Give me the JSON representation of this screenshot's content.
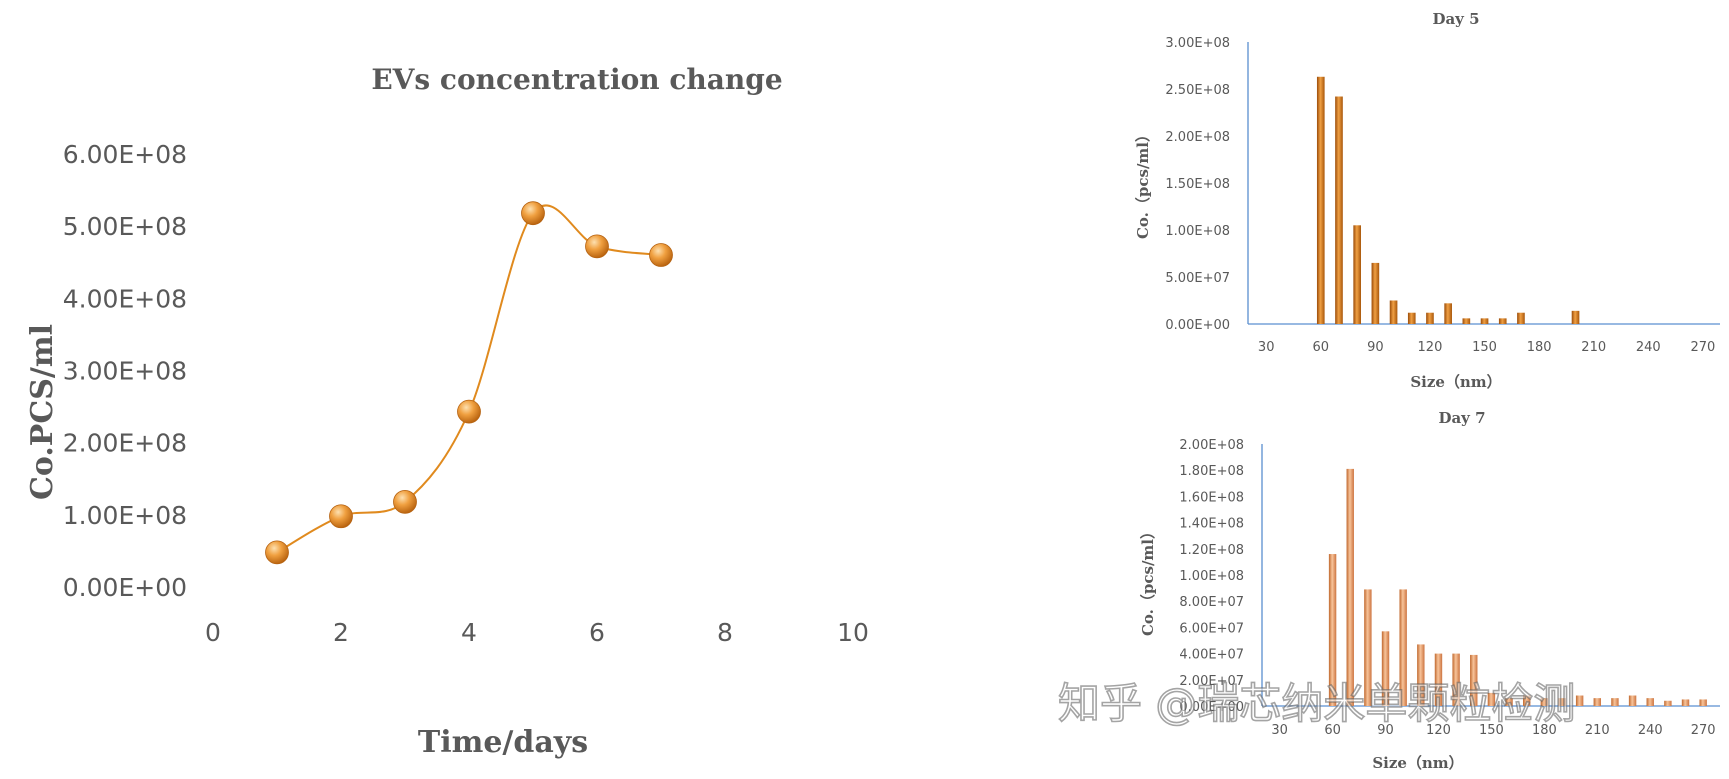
{
  "chart_data": [
    {
      "type": "line",
      "title": "EVs concentration change",
      "xlabel": "Time/days",
      "ylabel": "Co.PCS/ml",
      "xlim": [
        0,
        10
      ],
      "ylim": [
        0,
        600000000
      ],
      "x_ticks": [
        "0",
        "2",
        "4",
        "6",
        "8",
        "10"
      ],
      "y_ticks": [
        "0.00E+00",
        "1.00E+08",
        "2.00E+08",
        "3.00E+08",
        "4.00E+08",
        "5.00E+08",
        "6.00E+08"
      ],
      "smoothed": true,
      "grid": false,
      "series": [
        {
          "x": [
            1,
            2,
            3,
            4,
            5,
            6,
            7
          ],
          "y": [
            48000000,
            98000000,
            118000000,
            243000000,
            518000000,
            472000000,
            460000000
          ],
          "color": "#e08a1e"
        }
      ]
    },
    {
      "type": "bar",
      "title": "Day 5",
      "xlabel": "Size（nm）",
      "ylabel": "Co.（pcs/ml）",
      "xlim": [
        20,
        275
      ],
      "ylim": [
        0,
        300000000
      ],
      "x_ticks": [
        "30",
        "60",
        "90",
        "120",
        "150",
        "180",
        "210",
        "240",
        "270"
      ],
      "y_ticks": [
        "0.00E+00",
        "5.00E+07",
        "1.00E+08",
        "1.50E+08",
        "2.00E+08",
        "2.50E+08",
        "3.00E+08"
      ],
      "grid": false,
      "x": [
        60,
        70,
        80,
        90,
        100,
        110,
        120,
        130,
        140,
        150,
        160,
        170,
        200
      ],
      "values": [
        263000000,
        242000000,
        105000000,
        65000000,
        25000000,
        12000000,
        12000000,
        22000000,
        6000000,
        6000000,
        6000000,
        12000000,
        14000000
      ],
      "color": "#c8660c"
    },
    {
      "type": "bar",
      "title": "Day 7",
      "xlabel": "Size（nm）",
      "ylabel": "Co.（pcs/ml）",
      "xlim": [
        20,
        275
      ],
      "ylim": [
        0,
        200000000
      ],
      "x_ticks": [
        "30",
        "60",
        "90",
        "120",
        "150",
        "180",
        "210",
        "240",
        "270"
      ],
      "y_ticks": [
        "0.00E+00",
        "2.00E+07",
        "4.00E+07",
        "6.00E+07",
        "8.00E+07",
        "1.00E+08",
        "1.20E+08",
        "1.40E+08",
        "1.60E+08",
        "1.80E+08",
        "2.00E+08"
      ],
      "grid": false,
      "x": [
        60,
        70,
        80,
        90,
        100,
        110,
        120,
        130,
        140,
        150,
        160,
        170,
        180,
        190,
        200,
        210,
        220,
        230,
        240,
        250,
        260,
        270
      ],
      "values": [
        116000000,
        181000000,
        89000000,
        57000000,
        89000000,
        47000000,
        40000000,
        40000000,
        39000000,
        10000000,
        6000000,
        8000000,
        6000000,
        6000000,
        8000000,
        6000000,
        6000000,
        8000000,
        6000000,
        4000000,
        5000000,
        5000000
      ],
      "color": "#e8925a"
    }
  ],
  "watermark": "知乎 @瑞芯纳米单颗粒检测"
}
